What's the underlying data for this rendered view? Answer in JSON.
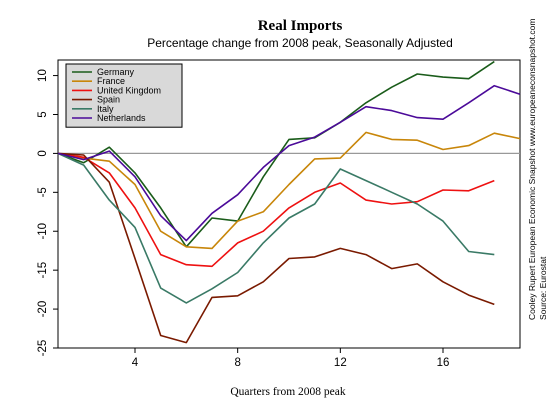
{
  "chart_data": {
    "type": "line",
    "title": "Real Imports",
    "subtitle": "Percentage change from 2008 peak, Seasonally Adjusted",
    "xlabel": "Quarters from 2008 peak",
    "ylabel": "",
    "xlim": [
      1,
      19
    ],
    "ylim": [
      -25,
      12
    ],
    "xticks": [
      4,
      8,
      12,
      16
    ],
    "yticks": [
      10,
      5,
      0,
      -5,
      -10,
      -15,
      -20,
      -25
    ],
    "x": [
      1,
      2,
      3,
      4,
      5,
      6,
      7,
      8,
      9,
      10,
      11,
      12,
      13,
      14,
      15,
      16,
      17,
      18,
      19
    ],
    "zero_line": true,
    "legend_position": "top-left",
    "series": [
      {
        "name": "Germany",
        "color": "#1a5c1a",
        "values": [
          0,
          -1.2,
          0.8,
          -2.5,
          -7,
          -12,
          -8.3,
          -8.7,
          -3,
          1.8,
          2,
          4,
          6.5,
          8.5,
          10.2,
          9.8,
          9.6,
          11.8,
          null
        ]
      },
      {
        "name": "France",
        "color": "#c8860a",
        "values": [
          0,
          -0.6,
          -1,
          -4,
          -10,
          -12,
          -12.2,
          -8.7,
          -7.5,
          -4,
          -0.7,
          -0.6,
          2.7,
          1.8,
          1.7,
          0.5,
          1,
          2.6,
          1.9
        ]
      },
      {
        "name": "United Kingdom",
        "color": "#ee1111",
        "values": [
          0,
          -0.5,
          -2.5,
          -7,
          -13,
          -14.3,
          -14.5,
          -11.5,
          -10,
          -7,
          -5,
          -3.8,
          -6,
          -6.5,
          -6.2,
          -4.7,
          -4.8,
          -3.5,
          null
        ]
      },
      {
        "name": "Spain",
        "color": "#7a1a00",
        "values": [
          0,
          -0.2,
          -3.7,
          -13.5,
          -23.4,
          -24.3,
          -18.5,
          -18.3,
          -16.5,
          -13.5,
          -13.3,
          -12.2,
          -13,
          -14.8,
          -14.2,
          -16.5,
          -18.2,
          -19.4,
          null
        ]
      },
      {
        "name": "Italy",
        "color": "#3a7a66",
        "values": [
          0,
          -1.5,
          -6,
          -9.5,
          -17.3,
          -19.2,
          -17.4,
          -15.3,
          -11.5,
          -8.3,
          -6.5,
          -2,
          -3.5,
          -5,
          -6.5,
          -8.7,
          -12.6,
          -13,
          null
        ]
      },
      {
        "name": "Netherlands",
        "color": "#4b0a99",
        "values": [
          0,
          -0.8,
          0.3,
          -3,
          -8,
          -11.2,
          -7.7,
          -5.3,
          -1.8,
          1,
          2.1,
          4,
          6,
          5.5,
          4.6,
          4.4,
          6.5,
          8.7,
          7.6
        ]
      }
    ]
  },
  "side_note": {
    "line1": "Cooley Rupert European Economic Snapshot  www.europeaneconsnapshot.com",
    "line2": "Source:  Eurostat"
  }
}
